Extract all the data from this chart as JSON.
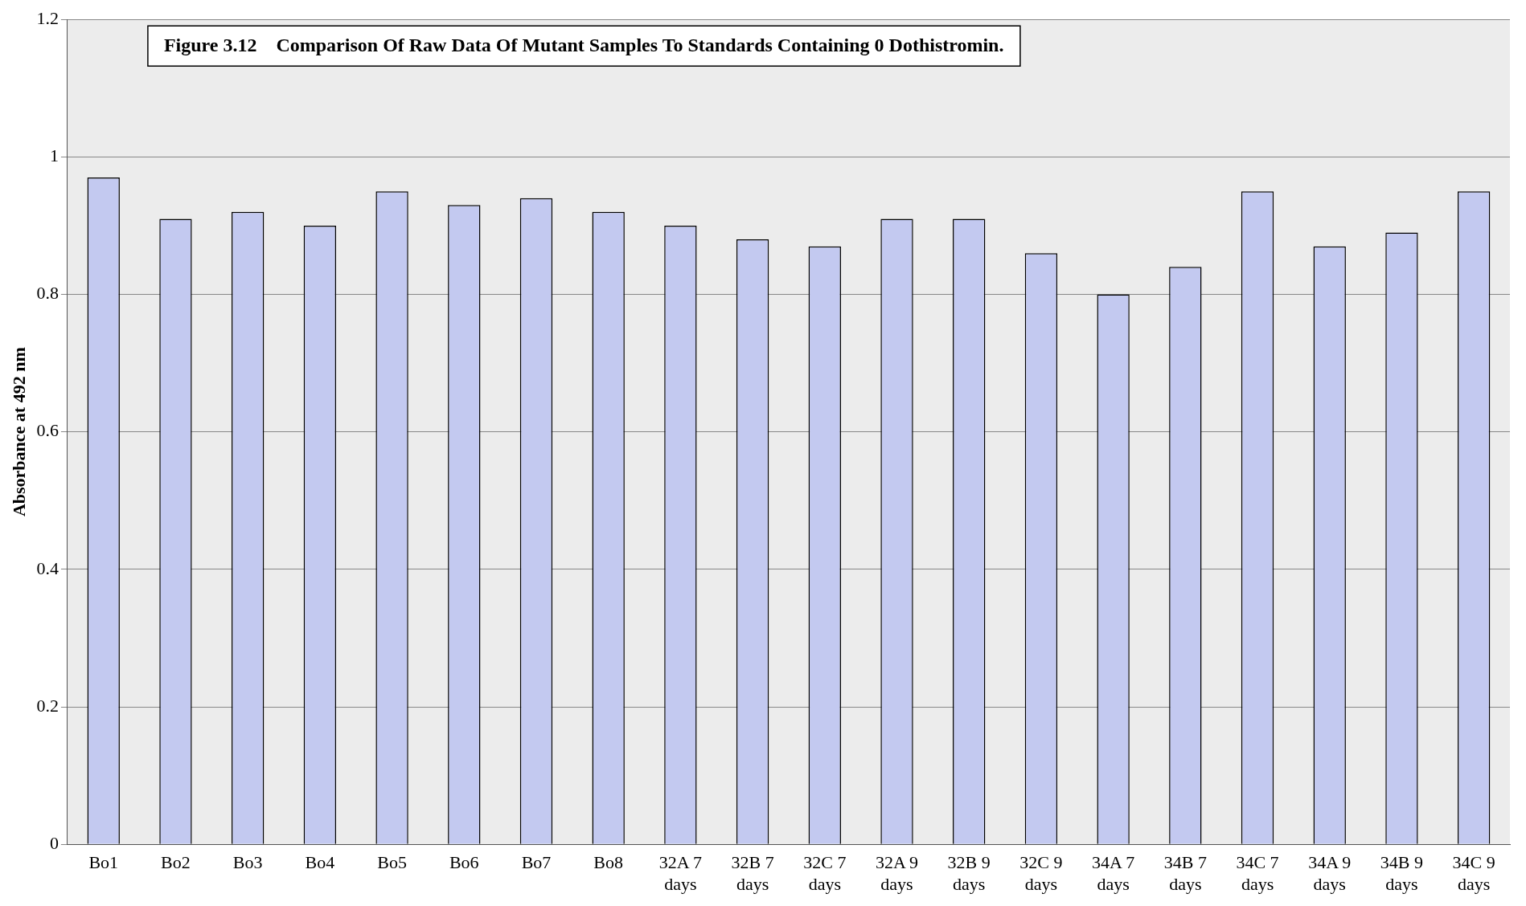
{
  "chart_data": {
    "type": "bar",
    "title": "Figure 3.12    Comparison Of Raw Data Of Mutant Samples To Standards Containing 0 Dothistromin.",
    "ylabel": "Absorbance at 492 nm",
    "categories": [
      "Bo1",
      "Bo2",
      "Bo3",
      "Bo4",
      "Bo5",
      "Bo6",
      "Bo7",
      "Bo8",
      "32A 7 days",
      "32B 7 days",
      "32C 7 days",
      "32A 9 days",
      "32B 9 days",
      "32C 9 days",
      "34A 7 days",
      "34B 7 days",
      "34C 7 days",
      "34A 9 days",
      "34B 9 days",
      "34C 9 days"
    ],
    "values": [
      0.97,
      0.91,
      0.92,
      0.9,
      0.95,
      0.93,
      0.94,
      0.92,
      0.9,
      0.88,
      0.87,
      0.91,
      0.91,
      0.86,
      0.8,
      0.84,
      0.95,
      0.87,
      0.89,
      0.95
    ],
    "color": "#c3c9f0",
    "ylim": [
      0,
      1.2
    ],
    "yticks": [
      0,
      0.2,
      0.4,
      0.6,
      0.8,
      1,
      1.2
    ],
    "grid": "y",
    "legend": false
  }
}
